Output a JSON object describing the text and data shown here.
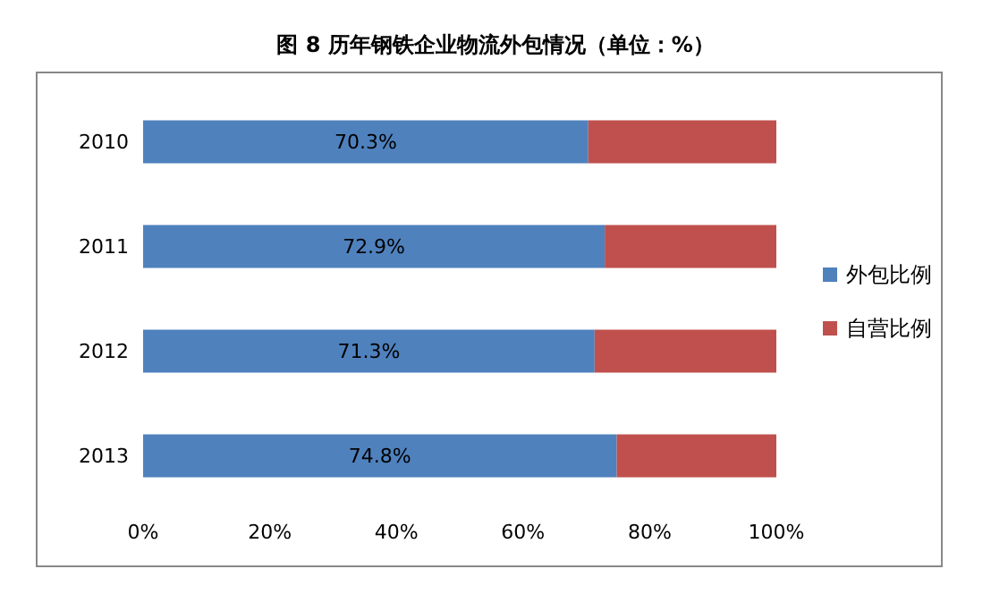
{
  "chart_data": {
    "type": "bar",
    "orientation": "horizontal",
    "stacked": true,
    "title": "图 8 历年钢铁企业物流外包情况（单位：%）",
    "categories": [
      "2010",
      "2011",
      "2012",
      "2013"
    ],
    "series": [
      {
        "name": "外包比例",
        "color": "#4f81bd",
        "values": [
          70.3,
          72.9,
          71.3,
          74.8
        ],
        "value_labels": [
          "70.3%",
          "72.9%",
          "71.3%",
          "74.8%"
        ]
      },
      {
        "name": "自营比例",
        "color": "#c0504d",
        "values": [
          29.7,
          27.1,
          28.7,
          25.2
        ]
      }
    ],
    "xlim": [
      0,
      100
    ],
    "xticks": [
      {
        "value": 0,
        "label": "0%"
      },
      {
        "value": 20,
        "label": "20%"
      },
      {
        "value": 40,
        "label": "40%"
      },
      {
        "value": 60,
        "label": "60%"
      },
      {
        "value": 80,
        "label": "80%"
      },
      {
        "value": 100,
        "label": "100%"
      }
    ],
    "grid": false,
    "legend": "right"
  }
}
